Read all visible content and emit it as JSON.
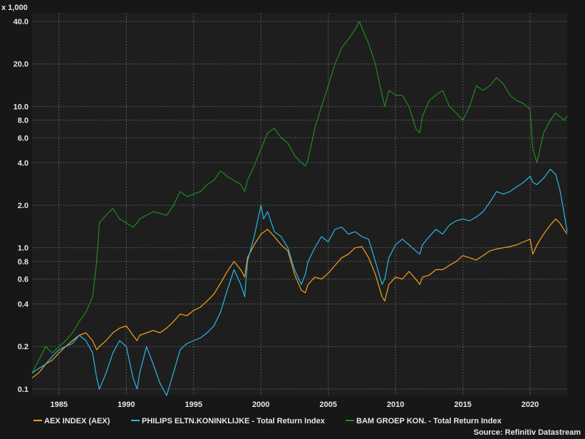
{
  "chart_data": {
    "type": "line",
    "y_scale": "log",
    "unit_label": "x 1,000",
    "source": "Source: Refinitiv Datastream",
    "xlim": [
      1983.0,
      2022.75
    ],
    "ylim": [
      0.09,
      46
    ],
    "y_ticks": [
      0.1,
      0.2,
      0.4,
      0.6,
      0.8,
      1.0,
      2.0,
      4.0,
      6.0,
      8.0,
      10.0,
      20.0,
      40.0
    ],
    "y_tick_labels": [
      "0.1",
      "0.2",
      "0.4",
      "0.6",
      "0.8",
      "1.0",
      "2.0",
      "4.0",
      "6.0",
      "8.0",
      "10.0",
      "20.0",
      "40.0"
    ],
    "x_ticks": [
      1985,
      1990,
      1995,
      2000,
      2005,
      2010,
      2015,
      2020
    ],
    "x_tick_labels": [
      "1985",
      "1990",
      "1995",
      "2000",
      "2005",
      "2010",
      "2015",
      "2020"
    ],
    "grid": true,
    "legend_position": "bottom",
    "colors": {
      "background": "#171717",
      "plot_background": "#1e1e1e",
      "grid": "#5a5a5a"
    },
    "series": [
      {
        "name": "AEX INDEX (AEX)",
        "color": "#f7a11a",
        "x": [
          1983.0,
          1983.5,
          1984.0,
          1984.5,
          1985.0,
          1985.5,
          1986.0,
          1986.5,
          1987.0,
          1987.5,
          1987.8,
          1988.0,
          1988.5,
          1989.0,
          1989.5,
          1990.0,
          1990.5,
          1990.8,
          1991.0,
          1991.5,
          1992.0,
          1992.5,
          1993.0,
          1993.5,
          1994.0,
          1994.5,
          1995.0,
          1995.5,
          1996.0,
          1996.5,
          1997.0,
          1997.5,
          1998.0,
          1998.5,
          1998.8,
          1999.0,
          1999.5,
          2000.0,
          2000.5,
          2001.0,
          2001.5,
          2002.0,
          2002.5,
          2003.0,
          2003.3,
          2003.5,
          2004.0,
          2004.5,
          2005.0,
          2005.5,
          2006.0,
          2006.5,
          2007.0,
          2007.5,
          2008.0,
          2008.5,
          2009.0,
          2009.2,
          2009.5,
          2010.0,
          2010.5,
          2011.0,
          2011.5,
          2011.8,
          2012.0,
          2012.5,
          2013.0,
          2013.5,
          2014.0,
          2014.5,
          2015.0,
          2015.5,
          2016.0,
          2016.5,
          2017.0,
          2017.5,
          2018.0,
          2018.5,
          2019.0,
          2019.5,
          2020.0,
          2020.2,
          2020.5,
          2021.0,
          2021.5,
          2021.9,
          2022.2,
          2022.5,
          2022.75
        ],
        "y": [
          0.12,
          0.13,
          0.15,
          0.16,
          0.18,
          0.2,
          0.22,
          0.24,
          0.25,
          0.22,
          0.19,
          0.2,
          0.22,
          0.25,
          0.27,
          0.28,
          0.24,
          0.22,
          0.24,
          0.25,
          0.26,
          0.25,
          0.27,
          0.3,
          0.34,
          0.33,
          0.36,
          0.38,
          0.42,
          0.47,
          0.56,
          0.68,
          0.8,
          0.7,
          0.62,
          0.85,
          1.05,
          1.25,
          1.35,
          1.2,
          1.05,
          0.95,
          0.65,
          0.5,
          0.48,
          0.55,
          0.62,
          0.6,
          0.66,
          0.75,
          0.85,
          0.9,
          1.0,
          1.02,
          0.85,
          0.65,
          0.45,
          0.42,
          0.55,
          0.62,
          0.6,
          0.68,
          0.6,
          0.55,
          0.62,
          0.64,
          0.7,
          0.7,
          0.75,
          0.8,
          0.88,
          0.85,
          0.82,
          0.88,
          0.95,
          0.98,
          1.0,
          1.02,
          1.05,
          1.1,
          1.15,
          0.9,
          1.05,
          1.25,
          1.45,
          1.6,
          1.5,
          1.35,
          1.25
        ]
      },
      {
        "name": "PHILIPS ELTN.KONINKLIJKE - Total Return Index",
        "color": "#2bb7e8",
        "x": [
          1983.0,
          1983.5,
          1984.0,
          1984.5,
          1985.0,
          1985.5,
          1986.0,
          1986.5,
          1987.0,
          1987.5,
          1987.8,
          1988.0,
          1988.5,
          1989.0,
          1989.5,
          1990.0,
          1990.5,
          1990.8,
          1991.0,
          1991.5,
          1992.0,
          1992.5,
          1993.0,
          1993.5,
          1994.0,
          1994.5,
          1995.0,
          1995.5,
          1996.0,
          1996.5,
          1997.0,
          1997.5,
          1998.0,
          1998.5,
          1998.8,
          1999.0,
          1999.5,
          2000.0,
          2000.2,
          2000.5,
          2001.0,
          2001.5,
          2002.0,
          2002.5,
          2003.0,
          2003.3,
          2003.5,
          2004.0,
          2004.5,
          2005.0,
          2005.5,
          2006.0,
          2006.5,
          2007.0,
          2007.5,
          2008.0,
          2008.5,
          2009.0,
          2009.2,
          2009.5,
          2010.0,
          2010.5,
          2011.0,
          2011.5,
          2011.8,
          2012.0,
          2012.5,
          2013.0,
          2013.5,
          2014.0,
          2014.5,
          2015.0,
          2015.5,
          2016.0,
          2016.5,
          2017.0,
          2017.5,
          2018.0,
          2018.5,
          2019.0,
          2019.5,
          2020.0,
          2020.2,
          2020.5,
          2021.0,
          2021.5,
          2021.9,
          2022.2,
          2022.5,
          2022.75
        ],
        "y": [
          0.13,
          0.14,
          0.15,
          0.17,
          0.19,
          0.2,
          0.21,
          0.24,
          0.22,
          0.18,
          0.12,
          0.1,
          0.13,
          0.18,
          0.22,
          0.2,
          0.12,
          0.1,
          0.13,
          0.2,
          0.15,
          0.11,
          0.09,
          0.13,
          0.19,
          0.21,
          0.22,
          0.23,
          0.25,
          0.28,
          0.35,
          0.5,
          0.7,
          0.55,
          0.45,
          0.8,
          1.2,
          2.0,
          1.6,
          1.8,
          1.3,
          1.2,
          1.0,
          0.7,
          0.55,
          0.65,
          0.8,
          1.0,
          1.2,
          1.1,
          1.35,
          1.4,
          1.25,
          1.3,
          1.2,
          1.15,
          0.8,
          0.55,
          0.6,
          0.85,
          1.05,
          1.15,
          1.05,
          0.95,
          0.9,
          1.05,
          1.2,
          1.35,
          1.25,
          1.45,
          1.55,
          1.6,
          1.55,
          1.65,
          1.8,
          2.1,
          2.5,
          2.4,
          2.5,
          2.7,
          2.9,
          3.2,
          2.9,
          2.8,
          3.1,
          3.6,
          3.3,
          2.6,
          1.8,
          1.3
        ]
      },
      {
        "name": "BAM GROEP KON. - Total Return Index",
        "color": "#1e8c1e",
        "x": [
          1983.0,
          1983.5,
          1984.0,
          1984.5,
          1985.0,
          1985.5,
          1986.0,
          1986.5,
          1987.0,
          1987.5,
          1987.8,
          1988.0,
          1988.5,
          1989.0,
          1989.5,
          1990.0,
          1990.5,
          1990.8,
          1991.0,
          1991.5,
          1992.0,
          1992.5,
          1993.0,
          1993.5,
          1994.0,
          1994.5,
          1995.0,
          1995.5,
          1996.0,
          1996.5,
          1997.0,
          1997.5,
          1998.0,
          1998.5,
          1998.8,
          1999.0,
          1999.5,
          2000.0,
          2000.5,
          2001.0,
          2001.5,
          2002.0,
          2002.5,
          2003.0,
          2003.3,
          2003.5,
          2004.0,
          2004.5,
          2005.0,
          2005.5,
          2006.0,
          2006.5,
          2007.0,
          2007.3,
          2007.5,
          2008.0,
          2008.5,
          2009.0,
          2009.2,
          2009.5,
          2010.0,
          2010.5,
          2011.0,
          2011.5,
          2011.8,
          2012.0,
          2012.5,
          2013.0,
          2013.5,
          2014.0,
          2014.5,
          2015.0,
          2015.5,
          2016.0,
          2016.5,
          2017.0,
          2017.5,
          2018.0,
          2018.5,
          2019.0,
          2019.5,
          2020.0,
          2020.2,
          2020.5,
          2021.0,
          2021.5,
          2021.9,
          2022.2,
          2022.5,
          2022.75
        ],
        "y": [
          0.13,
          0.16,
          0.2,
          0.18,
          0.2,
          0.22,
          0.25,
          0.3,
          0.35,
          0.45,
          0.8,
          1.5,
          1.7,
          1.9,
          1.6,
          1.5,
          1.4,
          1.5,
          1.6,
          1.7,
          1.8,
          1.75,
          1.7,
          2.0,
          2.5,
          2.3,
          2.4,
          2.5,
          2.8,
          3.0,
          3.5,
          3.2,
          3.0,
          2.8,
          2.5,
          3.0,
          3.8,
          5.0,
          6.5,
          7.0,
          6.0,
          5.5,
          4.5,
          4.0,
          3.8,
          4.2,
          7.0,
          10.0,
          14.0,
          20.0,
          26.0,
          30.0,
          35.0,
          40.0,
          36.0,
          28.0,
          20.0,
          12.0,
          10.0,
          13.0,
          12.0,
          12.0,
          10.0,
          7.0,
          6.5,
          8.5,
          11.0,
          12.0,
          13.0,
          10.0,
          9.0,
          8.0,
          10.0,
          14.0,
          13.0,
          14.0,
          16.0,
          14.5,
          12.0,
          11.0,
          10.5,
          9.5,
          5.0,
          4.0,
          6.5,
          8.0,
          9.0,
          8.5,
          8.0,
          8.5
        ]
      }
    ]
  }
}
